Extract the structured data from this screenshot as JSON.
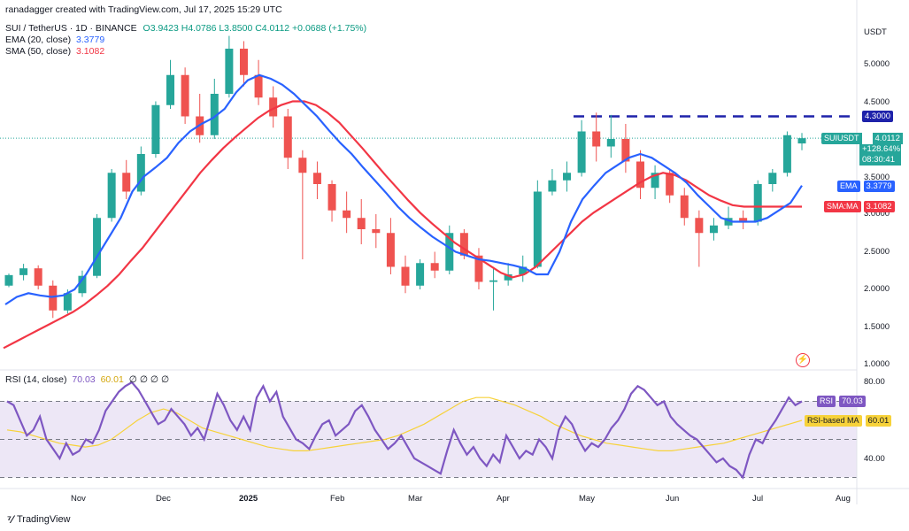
{
  "header": {
    "created": "ranadagger created with TradingView.com, Jul 17, 2025 15:29 UTC",
    "symbol_line": "SUI / TetherUS · 1D · BINANCE",
    "ohlc": "O3.9423 H4.0786 L3.8500 C4.0112 +0.0688 (+1.75%)",
    "ema_label": "EMA (20, close)",
    "ema_value": "3.3779",
    "sma_label": "SMA (50, close)",
    "sma_value": "3.1082"
  },
  "currency": "USDT",
  "price_axis": [
    "5.0000",
    "4.5000",
    "3.5000",
    "3.0000",
    "2.5000",
    "2.0000",
    "1.5000",
    "1.0000"
  ],
  "tags": {
    "resistance": "4.3000",
    "sym_name": "SUIUSDT",
    "sym_price": "4.0112",
    "sym_change": "+128.64%",
    "sym_timer": "08:30:41",
    "ema_tag": "EMA",
    "ema_val": "3.3779",
    "sma_tag": "SMA:MA",
    "sma_val": "3.1082",
    "rsi_tag": "RSI",
    "rsi_val": "70.03",
    "rsima_tag": "RSI-based MA",
    "rsima_val": "60.01"
  },
  "rsi_header": {
    "label": "RSI (14, close)",
    "v1": "70.03",
    "v2": "60.01",
    "rest": "∅ ∅ ∅ ∅"
  },
  "rsi_axis": [
    "80.00",
    "40.00"
  ],
  "time_axis": [
    "Nov",
    "Dec",
    "2025",
    "Feb",
    "Mar",
    "Apr",
    "May",
    "Jun",
    "Jul",
    "Aug"
  ],
  "brand": "TradingView",
  "colors": {
    "up": "#26a69a",
    "down": "#ef5350",
    "ema": "#2962ff",
    "sma": "#f23645",
    "rsi": "#7e57c2",
    "rsi_ma": "#f7d23a",
    "band": "#ede7f6"
  },
  "chart_data": {
    "type": "candlestick",
    "symbol": "SUI / TetherUS",
    "ylim": [
      1.0,
      5.4
    ],
    "resistance": 4.3,
    "rsi_ylim": [
      25,
      85
    ],
    "rsi_levels": [
      70,
      50,
      30
    ],
    "candles_ohlc": [
      [
        2.05,
        2.21,
        2.03,
        2.19
      ],
      [
        2.19,
        2.34,
        2.12,
        2.28
      ],
      [
        2.28,
        2.32,
        2.0,
        2.05
      ],
      [
        2.05,
        2.12,
        1.62,
        1.72
      ],
      [
        1.72,
        2.0,
        1.68,
        1.95
      ],
      [
        1.95,
        2.25,
        1.9,
        2.18
      ],
      [
        2.18,
        3.0,
        2.15,
        2.95
      ],
      [
        2.95,
        3.6,
        2.9,
        3.55
      ],
      [
        3.55,
        3.72,
        3.2,
        3.3
      ],
      [
        3.3,
        3.9,
        3.25,
        3.8
      ],
      [
        3.8,
        4.5,
        3.75,
        4.45
      ],
      [
        4.45,
        5.05,
        4.4,
        4.85
      ],
      [
        4.85,
        4.95,
        4.2,
        4.3
      ],
      [
        4.3,
        4.6,
        3.95,
        4.05
      ],
      [
        4.05,
        4.8,
        4.0,
        4.6
      ],
      [
        4.6,
        5.37,
        4.55,
        5.2
      ],
      [
        5.2,
        5.3,
        4.7,
        4.85
      ],
      [
        4.85,
        5.05,
        4.45,
        4.55
      ],
      [
        4.55,
        4.7,
        4.15,
        4.3
      ],
      [
        4.3,
        4.4,
        3.6,
        3.75
      ],
      [
        3.75,
        3.85,
        2.4,
        3.55
      ],
      [
        3.55,
        3.7,
        3.2,
        3.4
      ],
      [
        3.4,
        3.45,
        2.9,
        3.05
      ],
      [
        3.05,
        3.3,
        2.75,
        2.95
      ],
      [
        2.95,
        3.2,
        2.6,
        2.8
      ],
      [
        2.8,
        3.0,
        2.55,
        2.75
      ],
      [
        2.75,
        2.95,
        2.2,
        2.3
      ],
      [
        2.3,
        2.45,
        1.95,
        2.05
      ],
      [
        2.05,
        2.4,
        2.0,
        2.35
      ],
      [
        2.35,
        2.5,
        2.15,
        2.25
      ],
      [
        2.25,
        2.85,
        2.2,
        2.75
      ],
      [
        2.75,
        2.8,
        2.4,
        2.45
      ],
      [
        2.45,
        2.55,
        2.0,
        2.1
      ],
      [
        2.1,
        2.3,
        1.72,
        2.12
      ],
      [
        2.12,
        2.35,
        2.05,
        2.2
      ],
      [
        2.2,
        2.45,
        2.1,
        2.3
      ],
      [
        2.3,
        3.45,
        2.28,
        3.3
      ],
      [
        3.3,
        3.6,
        3.25,
        3.45
      ],
      [
        3.45,
        3.7,
        3.3,
        3.55
      ],
      [
        3.55,
        4.25,
        3.5,
        4.1
      ],
      [
        4.1,
        4.35,
        3.7,
        3.9
      ],
      [
        3.9,
        4.32,
        3.75,
        4.0
      ],
      [
        4.0,
        4.2,
        3.55,
        3.7
      ],
      [
        3.7,
        3.85,
        3.2,
        3.35
      ],
      [
        3.35,
        3.65,
        3.2,
        3.55
      ],
      [
        3.55,
        3.6,
        3.15,
        3.25
      ],
      [
        3.25,
        3.35,
        2.85,
        2.95
      ],
      [
        2.95,
        3.05,
        2.3,
        2.75
      ],
      [
        2.75,
        2.95,
        2.65,
        2.85
      ],
      [
        2.85,
        3.1,
        2.8,
        2.95
      ],
      [
        2.95,
        3.05,
        2.8,
        2.9
      ],
      [
        2.9,
        3.45,
        2.85,
        3.4
      ],
      [
        3.4,
        3.6,
        3.3,
        3.55
      ],
      [
        3.55,
        4.1,
        3.5,
        4.05
      ],
      [
        3.94,
        4.08,
        3.85,
        4.01
      ]
    ],
    "ema20": [
      1.8,
      1.9,
      1.95,
      1.92,
      1.9,
      1.92,
      2.0,
      2.2,
      2.45,
      2.7,
      2.95,
      3.3,
      3.5,
      3.62,
      3.75,
      3.95,
      4.1,
      4.2,
      4.28,
      4.4,
      4.62,
      4.78,
      4.85,
      4.8,
      4.72,
      4.6,
      4.45,
      4.3,
      4.12,
      3.95,
      3.8,
      3.62,
      3.45,
      3.28,
      3.1,
      2.95,
      2.82,
      2.7,
      2.6,
      2.5,
      2.45,
      2.4,
      2.38,
      2.35,
      2.32,
      2.28,
      2.2,
      2.2,
      2.5,
      2.9,
      3.2,
      3.38,
      3.55,
      3.65,
      3.75,
      3.8,
      3.75,
      3.65,
      3.55,
      3.42,
      3.25,
      3.1,
      2.95,
      2.9,
      2.9,
      2.9,
      2.95,
      3.05,
      3.15,
      3.38
    ],
    "sma50": [
      1.22,
      1.3,
      1.38,
      1.46,
      1.54,
      1.62,
      1.7,
      1.8,
      1.92,
      2.05,
      2.2,
      2.38,
      2.55,
      2.75,
      2.95,
      3.15,
      3.35,
      3.55,
      3.72,
      3.88,
      4.02,
      4.15,
      4.28,
      4.38,
      4.45,
      4.5,
      4.5,
      4.45,
      4.35,
      4.22,
      4.05,
      3.88,
      3.7,
      3.52,
      3.35,
      3.18,
      3.02,
      2.88,
      2.75,
      2.62,
      2.52,
      2.42,
      2.32,
      2.22,
      2.16,
      2.2,
      2.3,
      2.45,
      2.6,
      2.75,
      2.9,
      3.02,
      3.12,
      3.22,
      3.32,
      3.42,
      3.5,
      3.55,
      3.52,
      3.45,
      3.35,
      3.25,
      3.18,
      3.12,
      3.1,
      3.1,
      3.1,
      3.1,
      3.1,
      3.1
    ],
    "rsi": [
      70,
      68,
      60,
      52,
      55,
      62,
      50,
      45,
      40,
      48,
      42,
      44,
      50,
      48,
      55,
      65,
      70,
      75,
      78,
      80,
      76,
      70,
      64,
      58,
      60,
      66,
      62,
      58,
      52,
      56,
      50,
      62,
      74,
      68,
      60,
      55,
      62,
      55,
      72,
      78,
      70,
      75,
      62,
      56,
      50,
      48,
      45,
      52,
      58,
      60,
      52,
      55,
      58,
      65,
      68,
      62,
      55,
      50,
      45,
      48,
      52,
      46,
      40,
      38,
      36,
      34,
      32,
      44,
      55,
      48,
      42,
      46,
      40,
      36,
      42,
      38,
      52,
      46,
      40,
      44,
      42,
      50,
      46,
      40,
      55,
      62,
      58,
      50,
      44,
      48,
      46,
      50,
      56,
      60,
      66,
      74,
      78,
      76,
      72,
      68,
      70,
      62,
      58,
      55,
      52,
      50,
      46,
      42,
      38,
      40,
      36,
      34,
      30,
      42,
      50,
      48,
      55,
      60,
      66,
      72,
      68,
      70
    ],
    "rsi_ma": [
      55,
      54,
      52,
      50,
      48,
      47,
      46,
      47,
      50,
      55,
      60,
      64,
      66,
      64,
      60,
      56,
      54,
      52,
      50,
      48,
      46,
      45,
      44,
      44,
      45,
      46,
      47,
      48,
      49,
      50,
      52,
      55,
      58,
      62,
      66,
      70,
      72,
      72,
      70,
      68,
      65,
      62,
      58,
      55,
      52,
      50,
      48,
      47,
      46,
      45,
      44,
      44,
      45,
      46,
      47,
      48,
      50,
      52,
      54,
      56,
      58,
      60
    ]
  }
}
